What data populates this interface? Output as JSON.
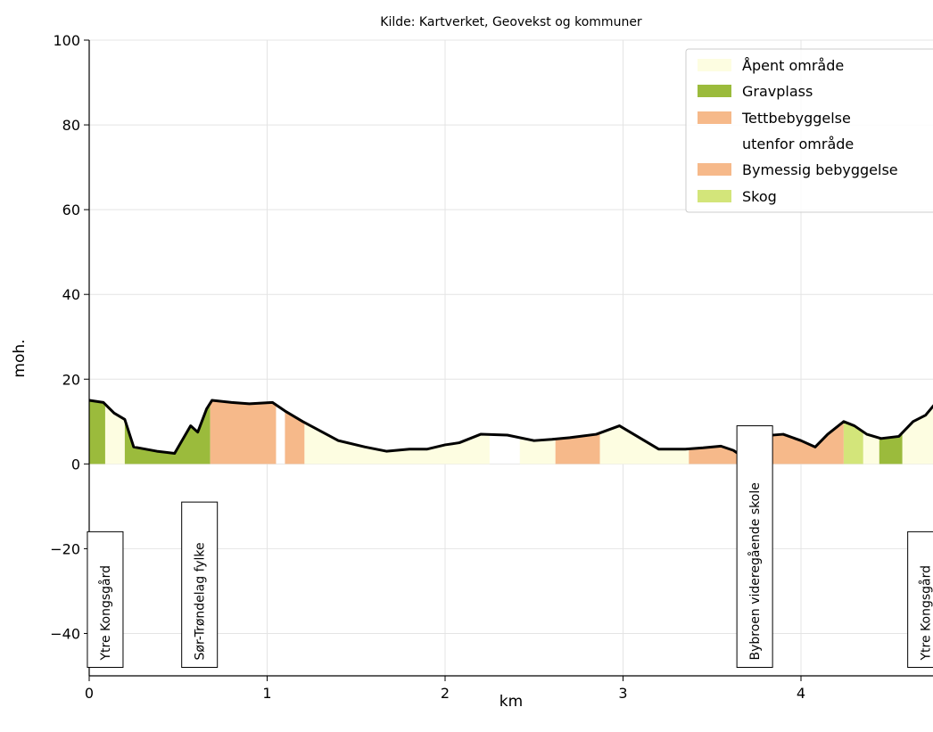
{
  "chart_data": {
    "type": "area",
    "source": "Kilde: Kartverket, Geovekst og kommuner",
    "xlabel": "km",
    "ylabel": "moh.",
    "xlim": [
      0,
      4.75
    ],
    "ylim": [
      -50,
      100
    ],
    "xticks": [
      "0",
      "1",
      "2",
      "3",
      "4"
    ],
    "yticks": [
      "−40",
      "−20",
      "0",
      "20",
      "40",
      "60",
      "80",
      "100"
    ],
    "grid": true,
    "legend_position": "top-right",
    "legend": [
      {
        "label": "Åpent område",
        "color": "#fdfde1"
      },
      {
        "label": "Gravplass",
        "color": "#9bbb3c"
      },
      {
        "label": "Tettbebyggelse utenfor område",
        "color": "#f6b98a"
      },
      {
        "label": "Bymessig bebyggelse",
        "color": "#f6b98a"
      },
      {
        "label": "Skog",
        "color": "#d3e57a"
      }
    ],
    "elevation_profile": {
      "x": [
        0,
        0.08,
        0.14,
        0.2,
        0.25,
        0.38,
        0.48,
        0.57,
        0.61,
        0.66,
        0.69,
        0.8,
        0.9,
        1.03,
        1.1,
        1.2,
        1.4,
        1.55,
        1.67,
        1.8,
        1.9,
        2.0,
        2.08,
        2.2,
        2.35,
        2.5,
        2.6,
        2.7,
        2.85,
        2.98,
        3.1,
        3.2,
        3.35,
        3.45,
        3.55,
        3.62,
        3.68,
        3.75,
        3.9,
        4.0,
        4.08,
        4.15,
        4.24,
        4.3,
        4.37,
        4.45,
        4.55,
        4.63,
        4.7,
        4.75
      ],
      "y": [
        15,
        14.5,
        12,
        10.5,
        4,
        3,
        2.5,
        9,
        7.5,
        13,
        15,
        14.5,
        14.2,
        14.5,
        12.5,
        10,
        5.5,
        4,
        3,
        3.5,
        3.5,
        4.5,
        5,
        7,
        6.8,
        5.5,
        5.8,
        6.2,
        7,
        9,
        6,
        3.5,
        3.5,
        3.8,
        4.2,
        3.2,
        1.5,
        6.5,
        7,
        5.5,
        4,
        7,
        10,
        9,
        7,
        6,
        6.5,
        10,
        11.5,
        14
      ]
    },
    "land_cover_segments": [
      {
        "from": 0.0,
        "to": 0.09,
        "class": "Gravplass"
      },
      {
        "from": 0.09,
        "to": 0.2,
        "class": "Åpent område"
      },
      {
        "from": 0.2,
        "to": 0.68,
        "class": "Gravplass"
      },
      {
        "from": 0.68,
        "to": 1.05,
        "class": "Bymessig bebyggelse"
      },
      {
        "from": 1.1,
        "to": 1.21,
        "class": "Tettbebyggelse utenfor område"
      },
      {
        "from": 1.21,
        "to": 2.25,
        "class": "Åpent område"
      },
      {
        "from": 2.42,
        "to": 2.62,
        "class": "Åpent område"
      },
      {
        "from": 2.62,
        "to": 2.87,
        "class": "Bymessig bebyggelse"
      },
      {
        "from": 2.87,
        "to": 3.37,
        "class": "Åpent område"
      },
      {
        "from": 3.37,
        "to": 3.7,
        "class": "Bymessig bebyggelse"
      },
      {
        "from": 3.8,
        "to": 4.24,
        "class": "Bymessig bebyggelse"
      },
      {
        "from": 4.24,
        "to": 4.35,
        "class": "Skog"
      },
      {
        "from": 4.35,
        "to": 4.44,
        "class": "Åpent område"
      },
      {
        "from": 4.44,
        "to": 4.57,
        "class": "Gravplass"
      },
      {
        "from": 4.57,
        "to": 4.75,
        "class": "Åpent område"
      }
    ],
    "annotations": [
      {
        "text": "Ytre Kongsgård",
        "x": 0.09
      },
      {
        "text": "Sør-Trøndelag fylke",
        "x": 0.62
      },
      {
        "text": "Bybroen videregående skole",
        "x": 3.74
      },
      {
        "text": "Ytre Kongsgård",
        "x": 4.7
      }
    ]
  }
}
